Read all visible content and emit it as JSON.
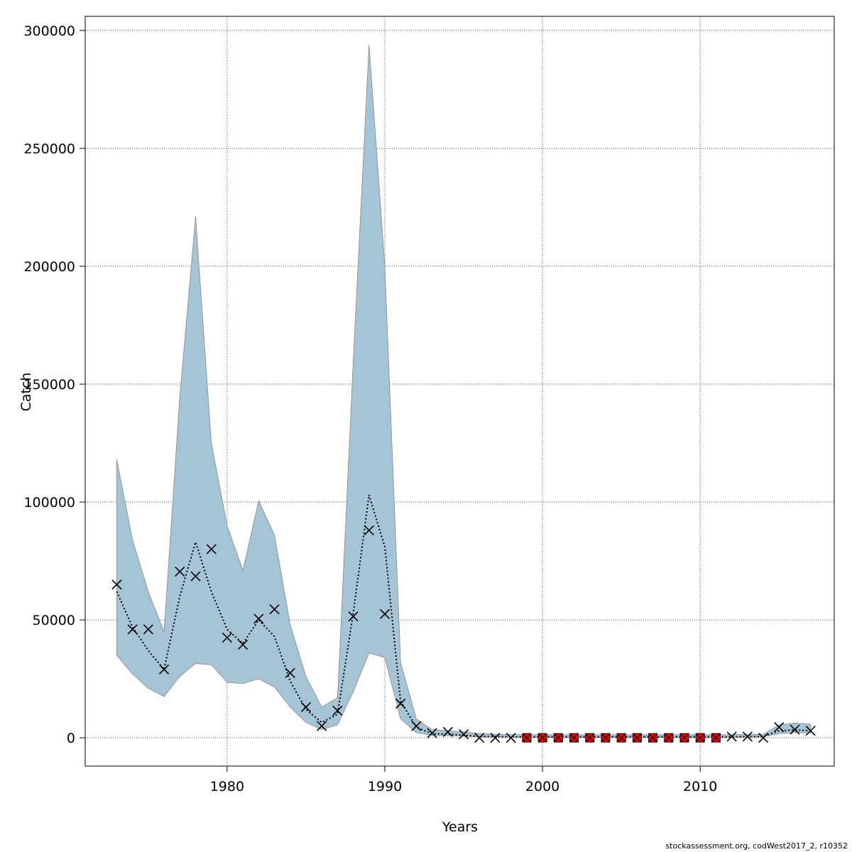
{
  "chart_data": {
    "type": "line",
    "title": "",
    "xlabel": "Years",
    "ylabel": "Catch",
    "xlim": [
      1971,
      2018.5
    ],
    "ylim": [
      -12000,
      306000
    ],
    "xticks": [
      1980,
      1990,
      2000,
      2010
    ],
    "yticks": [
      0,
      50000,
      100000,
      150000,
      200000,
      250000,
      300000
    ],
    "grid": true,
    "colors": {
      "band": "#a5c4d5",
      "band_edge": "#888888",
      "estimate": "#000000",
      "marker": "#000000",
      "highlight": "#ff0000"
    },
    "series": [
      {
        "kind": "confidence_band",
        "x": [
          1973,
          1974,
          1975,
          1976,
          1977,
          1978,
          1979,
          1980,
          1981,
          1982,
          1983,
          1984,
          1985,
          1986,
          1987,
          1988,
          1989,
          1990,
          1991,
          1992,
          1993,
          1994,
          1995,
          1996,
          1997,
          1998,
          1999,
          2000,
          2001,
          2002,
          2003,
          2004,
          2005,
          2006,
          2007,
          2008,
          2009,
          2010,
          2011,
          2012,
          2013,
          2014,
          2015,
          2016,
          2017
        ],
        "upper": [
          118000,
          84000,
          62000,
          45000,
          145000,
          221000,
          125000,
          90000,
          71000,
          100500,
          86000,
          48000,
          26000,
          13000,
          17000,
          160000,
          294000,
          200000,
          32000,
          8000,
          3500,
          3000,
          2500,
          1800,
          1500,
          1400,
          1300,
          1300,
          1300,
          1300,
          1300,
          1300,
          1300,
          1300,
          1300,
          1300,
          1300,
          1300,
          1300,
          1300,
          1400,
          1500,
          5500,
          6200,
          5800
        ],
        "lower": [
          35000,
          27000,
          21000,
          17500,
          26000,
          31500,
          31000,
          23500,
          23000,
          25000,
          21500,
          13000,
          6500,
          3500,
          5500,
          19500,
          36000,
          34000,
          8000,
          2200,
          1000,
          900,
          700,
          400,
          300,
          300,
          250,
          250,
          250,
          250,
          250,
          250,
          250,
          250,
          250,
          250,
          250,
          250,
          250,
          250,
          300,
          400,
          1800,
          2200,
          2000
        ]
      },
      {
        "kind": "estimate_line",
        "x": [
          1973,
          1974,
          1975,
          1976,
          1977,
          1978,
          1979,
          1980,
          1981,
          1982,
          1983,
          1984,
          1985,
          1986,
          1987,
          1988,
          1989,
          1990,
          1991,
          1992,
          1993,
          1994,
          1995,
          1996,
          1997,
          1998,
          1999,
          2000,
          2001,
          2002,
          2003,
          2004,
          2005,
          2006,
          2007,
          2008,
          2009,
          2010,
          2011,
          2012,
          2013,
          2014,
          2015,
          2016,
          2017
        ],
        "values": [
          62000,
          47000,
          37000,
          29000,
          60000,
          83000,
          62000,
          46000,
          40000,
          50000,
          43000,
          24000,
          12000,
          6500,
          10000,
          53000,
          103000,
          81000,
          15500,
          4500,
          1700,
          1600,
          1100,
          600,
          500,
          450,
          400,
          400,
          400,
          400,
          400,
          400,
          400,
          400,
          400,
          400,
          400,
          400,
          400,
          400,
          500,
          600,
          3000,
          3300,
          3000
        ]
      },
      {
        "kind": "observed",
        "marker": "x",
        "x": [
          1973,
          1974,
          1975,
          1976,
          1977,
          1978,
          1979,
          1980,
          1981,
          1982,
          1983,
          1984,
          1985,
          1986,
          1987,
          1988,
          1989,
          1990,
          1991,
          1992,
          1993,
          1994,
          1995,
          1996,
          1997,
          1998,
          2012,
          2013,
          2014,
          2015,
          2016,
          2017
        ],
        "values": [
          65000,
          46000,
          46000,
          29000,
          70500,
          68500,
          80000,
          42500,
          39500,
          50500,
          54500,
          27500,
          13000,
          5000,
          11500,
          51500,
          88000,
          52500,
          14500,
          5000,
          2000,
          2500,
          1500,
          0,
          0,
          0,
          500,
          500,
          0,
          4500,
          3500,
          3000
        ]
      },
      {
        "kind": "observed_highlight",
        "marker": "x-red-box",
        "x": [
          1999,
          2000,
          2001,
          2002,
          2003,
          2004,
          2005,
          2006,
          2007,
          2008,
          2009,
          2010,
          2011
        ],
        "values": [
          0,
          0,
          0,
          0,
          0,
          0,
          0,
          0,
          0,
          0,
          0,
          0,
          0
        ]
      }
    ]
  },
  "footer": {
    "text": "stockassessment.org, codWest2017_2, r10352"
  }
}
